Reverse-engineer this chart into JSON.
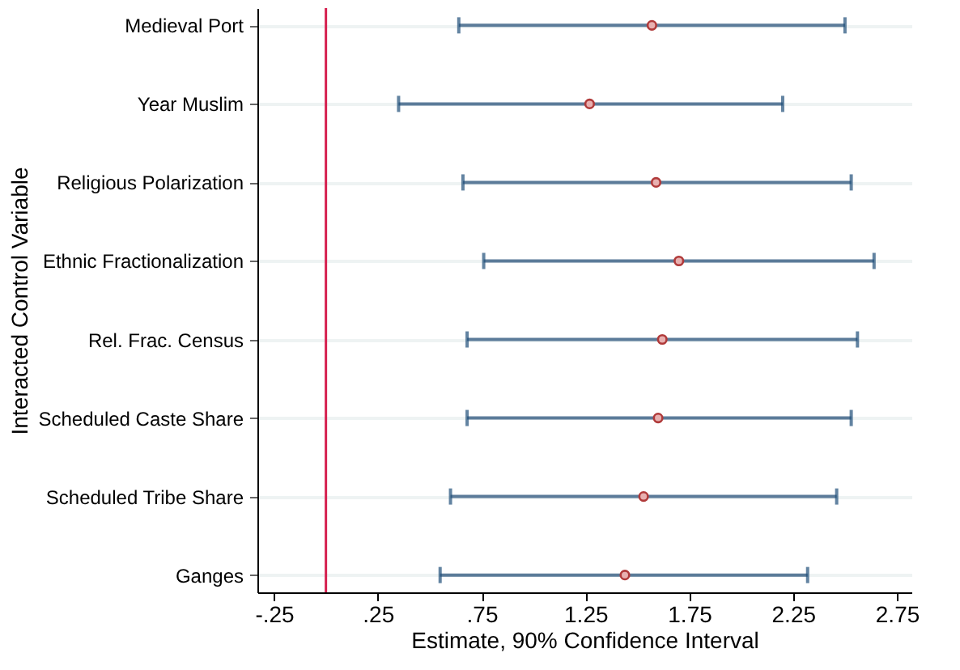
{
  "chart_data": {
    "type": "scatter",
    "orientation": "horizontal",
    "xlabel": "Estimate, 90% Confidence Interval",
    "ylabel": "Interacted Control Variable",
    "categories": [
      "Medieval Port",
      "Year Muslim",
      "Religious Polarization",
      "Ethnic Fractionalization",
      "Rel. Frac. Census",
      "Scheduled Caste Share",
      "Scheduled Tribe Share",
      "Ganges"
    ],
    "series": [
      {
        "color": "#b03a3a",
        "values": [
          1.57,
          1.27,
          1.59,
          1.7,
          1.62,
          1.6,
          1.53,
          1.44
        ],
        "errors": [
          [
            0.64,
            2.5
          ],
          [
            0.35,
            2.2
          ],
          [
            0.66,
            2.53
          ],
          [
            0.76,
            2.64
          ],
          [
            0.68,
            2.56
          ],
          [
            0.68,
            2.53
          ],
          [
            0.6,
            2.46
          ],
          [
            0.55,
            2.32
          ]
        ]
      }
    ],
    "xlim": [
      -0.33,
      2.82
    ],
    "xticks": [
      {
        "value": -0.25,
        "label": "-.25"
      },
      {
        "value": 0.25,
        "label": ".25"
      },
      {
        "value": 0.75,
        "label": ".75"
      },
      {
        "value": 1.25,
        "label": "1.25"
      },
      {
        "value": 1.75,
        "label": "1.75"
      },
      {
        "value": 2.25,
        "label": "2.25"
      },
      {
        "value": 2.75,
        "label": "2.75"
      }
    ],
    "ref_lines": [
      {
        "axis": "x",
        "value": 0,
        "color": "#d6204f"
      }
    ],
    "grid": "y",
    "marker": "circle"
  }
}
